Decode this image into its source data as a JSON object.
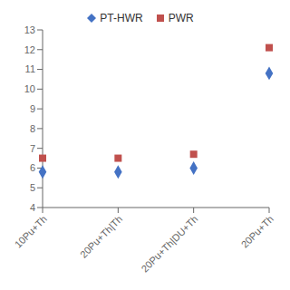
{
  "chart_data": {
    "type": "scatter",
    "categories": [
      "10Pu+Th",
      "20Pu+Th|Th",
      "20Pu+Th|DU+Th",
      "20Pu+Th"
    ],
    "series": [
      {
        "name": "PT-HWR",
        "color": "#4472c4",
        "marker": "diamond",
        "values": [
          5.8,
          5.8,
          6.0,
          10.8
        ]
      },
      {
        "name": "PWR",
        "color": "#c0504d",
        "marker": "square",
        "values": [
          6.5,
          6.5,
          6.7,
          12.1
        ]
      }
    ],
    "ylim": [
      4,
      13
    ],
    "yticks": [
      4,
      5,
      6,
      7,
      8,
      9,
      10,
      11,
      12,
      13
    ],
    "grid": false,
    "legend": "top"
  }
}
